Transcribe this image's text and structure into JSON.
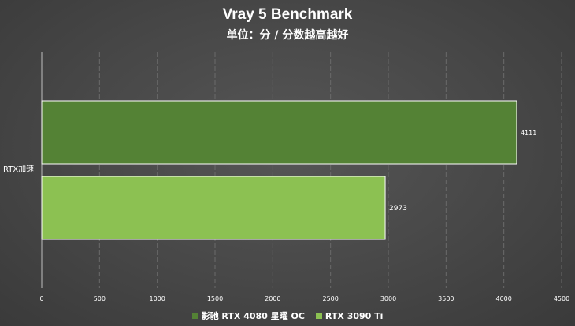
{
  "chart_data": {
    "type": "bar",
    "orientation": "horizontal",
    "title": "Vray 5 Benchmark",
    "subtitle": "单位：分 / 分数越高越好",
    "categories": [
      "RTX加速"
    ],
    "series": [
      {
        "name": "影驰 RTX 4080 星曜 OC",
        "values": [
          4111
        ],
        "color": "#548235"
      },
      {
        "name": "RTX 3090 Ti",
        "values": [
          2973
        ],
        "color": "#8cc152"
      }
    ],
    "xlim": [
      0,
      4500
    ],
    "xticks": [
      0,
      500,
      1000,
      1500,
      2000,
      2500,
      3000,
      3500,
      4000,
      4500
    ],
    "grid": true,
    "legend_position": "bottom"
  }
}
